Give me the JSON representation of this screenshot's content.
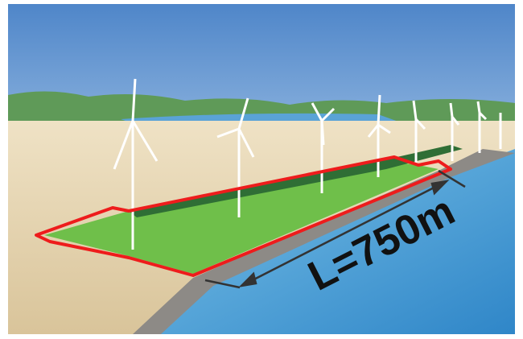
{
  "annotation": {
    "label": "L=750m"
  }
}
